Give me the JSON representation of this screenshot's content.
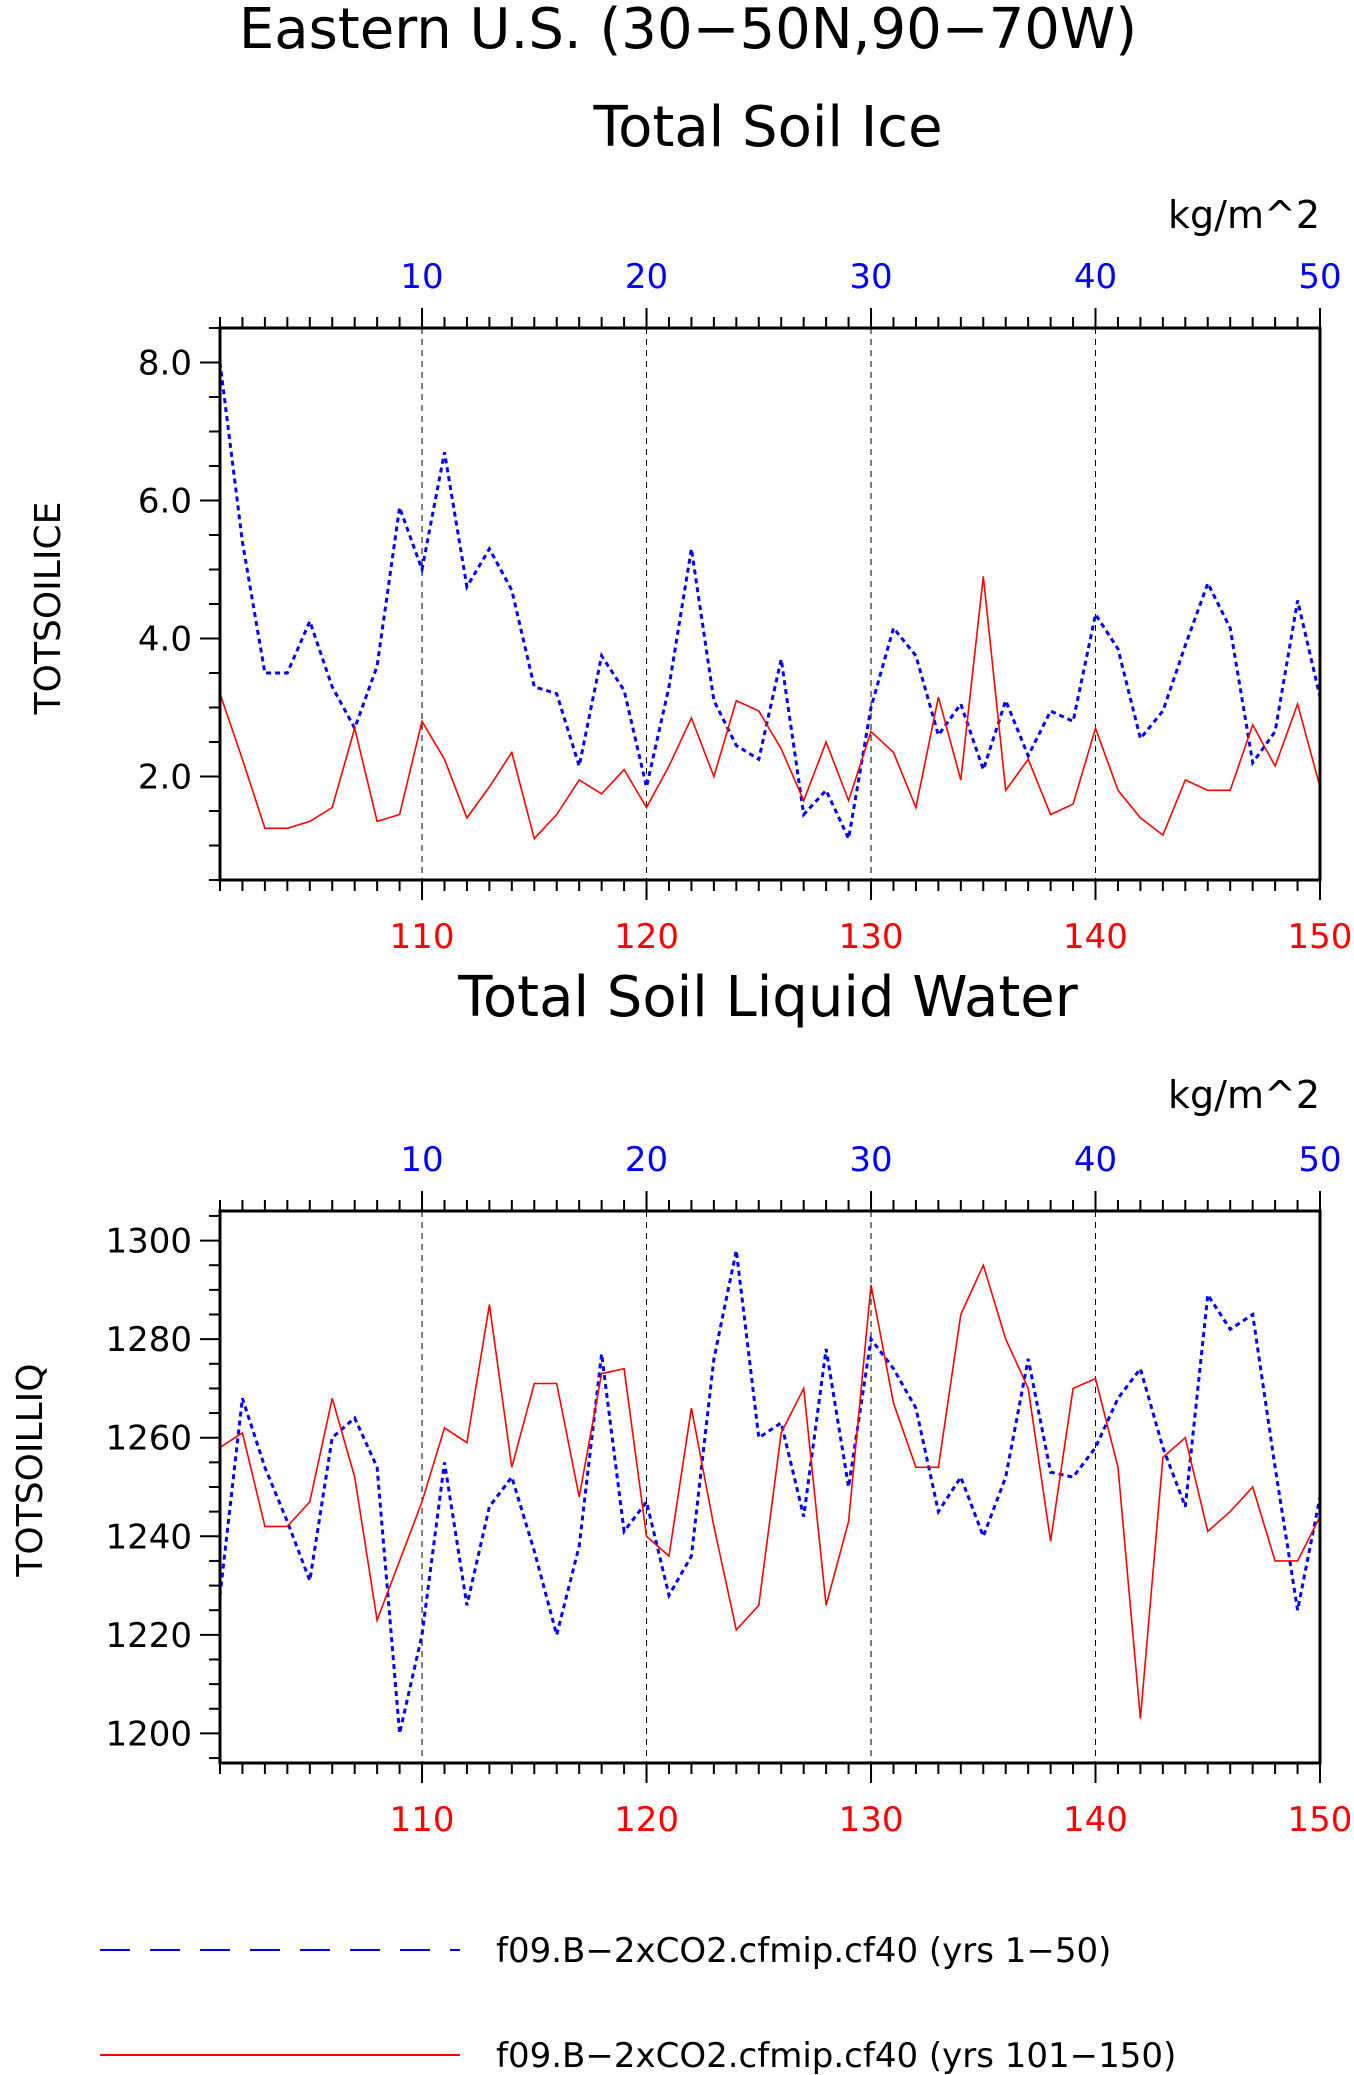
{
  "figure": {
    "title": "Eastern U.S. (30−50N,90−70W)",
    "colors": {
      "series_top": "#0000ff",
      "series_bottom": "#ff0000",
      "axis": "#000000"
    }
  },
  "chart_data": [
    {
      "type": "line",
      "title": "Total Soil Ice",
      "ylabel": "TOTSOILICE",
      "units": "kg/m^2",
      "ylim": [
        0.5,
        8.5
      ],
      "y_ticks": [
        2.0,
        4.0,
        6.0,
        8.0
      ],
      "y_tick_labels": [
        "2.0",
        "4.0",
        "6.0",
        "8.0"
      ],
      "y_minor_step": 0.5,
      "grid": "vertical dashed at major x ticks",
      "top_axis": {
        "range": [
          1,
          50
        ],
        "ticks": [
          10,
          20,
          30,
          40,
          50
        ],
        "labels": [
          "10",
          "20",
          "30",
          "40",
          "50"
        ]
      },
      "bottom_axis": {
        "range": [
          101,
          150
        ],
        "ticks": [
          110,
          120,
          130,
          140,
          150
        ],
        "labels": [
          "110",
          "120",
          "130",
          "140",
          "150"
        ]
      },
      "series": [
        {
          "name": "f09.B−2xCO2.cfmip.cf40 (yrs 1−50)",
          "axis": "top",
          "color": "#0000ff",
          "style": "dashed",
          "x": [
            1,
            2,
            3,
            4,
            5,
            6,
            7,
            8,
            9,
            10,
            11,
            12,
            13,
            14,
            15,
            16,
            17,
            18,
            19,
            20,
            21,
            22,
            23,
            24,
            25,
            26,
            27,
            28,
            29,
            30,
            31,
            32,
            33,
            34,
            35,
            36,
            37,
            38,
            39,
            40,
            41,
            42,
            43,
            44,
            45,
            46,
            47,
            48,
            49,
            50
          ],
          "values": [
            8.0,
            5.4,
            3.5,
            3.5,
            4.25,
            3.3,
            2.7,
            3.6,
            5.9,
            5.0,
            6.7,
            4.75,
            5.3,
            4.7,
            3.3,
            3.2,
            2.15,
            3.75,
            3.25,
            1.85,
            3.3,
            5.3,
            3.1,
            2.45,
            2.25,
            3.7,
            1.45,
            1.8,
            1.1,
            3.0,
            4.15,
            3.75,
            2.6,
            3.05,
            2.1,
            3.1,
            2.3,
            2.95,
            2.8,
            4.35,
            3.85,
            2.55,
            2.95,
            3.9,
            4.8,
            4.15,
            2.2,
            2.65,
            4.55,
            3.15
          ]
        },
        {
          "name": "f09.B−2xCO2.cfmip.cf40 (yrs 101−150)",
          "axis": "bottom",
          "color": "#ff0000",
          "style": "solid",
          "x": [
            101,
            102,
            103,
            104,
            105,
            106,
            107,
            108,
            109,
            110,
            111,
            112,
            113,
            114,
            115,
            116,
            117,
            118,
            119,
            120,
            121,
            122,
            123,
            124,
            125,
            126,
            127,
            128,
            129,
            130,
            131,
            132,
            133,
            134,
            135,
            136,
            137,
            138,
            139,
            140,
            141,
            142,
            143,
            144,
            145,
            146,
            147,
            148,
            149,
            150
          ],
          "values": [
            3.2,
            2.25,
            1.25,
            1.25,
            1.35,
            1.55,
            2.7,
            1.35,
            1.45,
            2.8,
            2.25,
            1.4,
            1.85,
            2.35,
            1.1,
            1.45,
            1.95,
            1.75,
            2.1,
            1.55,
            2.15,
            2.85,
            2.0,
            3.1,
            2.95,
            2.4,
            1.65,
            2.5,
            1.65,
            2.65,
            2.35,
            1.55,
            3.15,
            1.95,
            4.9,
            1.8,
            2.25,
            1.45,
            1.6,
            2.7,
            1.8,
            1.4,
            1.15,
            1.95,
            1.8,
            1.8,
            2.75,
            2.15,
            3.05,
            1.85
          ]
        }
      ]
    },
    {
      "type": "line",
      "title": "Total Soil Liquid Water",
      "ylabel": "TOTSOILLIQ",
      "units": "kg/m^2",
      "ylim": [
        1194,
        1306
      ],
      "y_ticks": [
        1200,
        1220,
        1240,
        1260,
        1280,
        1300
      ],
      "y_tick_labels": [
        "1200",
        "1220",
        "1240",
        "1260",
        "1280",
        "1300"
      ],
      "y_minor_step": 5,
      "grid": "vertical dashed at major x ticks",
      "top_axis": {
        "range": [
          1,
          50
        ],
        "ticks": [
          10,
          20,
          30,
          40,
          50
        ],
        "labels": [
          "10",
          "20",
          "30",
          "40",
          "50"
        ]
      },
      "bottom_axis": {
        "range": [
          101,
          150
        ],
        "ticks": [
          110,
          120,
          130,
          140,
          150
        ],
        "labels": [
          "110",
          "120",
          "130",
          "140",
          "150"
        ]
      },
      "series": [
        {
          "name": "f09.B−2xCO2.cfmip.cf40 (yrs 1−50)",
          "axis": "top",
          "color": "#0000ff",
          "style": "dashed",
          "x": [
            1,
            2,
            3,
            4,
            5,
            6,
            7,
            8,
            9,
            10,
            11,
            12,
            13,
            14,
            15,
            16,
            17,
            18,
            19,
            20,
            21,
            22,
            23,
            24,
            25,
            26,
            27,
            28,
            29,
            30,
            31,
            32,
            33,
            34,
            35,
            36,
            37,
            38,
            39,
            40,
            41,
            42,
            43,
            44,
            45,
            46,
            47,
            48,
            49,
            50
          ],
          "values": [
            1228,
            1268,
            1254,
            1243,
            1231,
            1260,
            1264,
            1254,
            1200,
            1220,
            1255,
            1226,
            1246,
            1252,
            1237,
            1220,
            1238,
            1277,
            1241,
            1247,
            1228,
            1236,
            1276,
            1298,
            1260,
            1263,
            1244,
            1278,
            1250,
            1280,
            1274,
            1266,
            1245,
            1252,
            1240,
            1252,
            1276,
            1253,
            1252,
            1258,
            1268,
            1274,
            1258,
            1246,
            1289,
            1282,
            1285,
            1254,
            1225,
            1248
          ]
        },
        {
          "name": "f09.B−2xCO2.cfmip.cf40 (yrs 101−150)",
          "axis": "bottom",
          "color": "#ff0000",
          "style": "solid",
          "x": [
            101,
            102,
            103,
            104,
            105,
            106,
            107,
            108,
            109,
            110,
            111,
            112,
            113,
            114,
            115,
            116,
            117,
            118,
            119,
            120,
            121,
            122,
            123,
            124,
            125,
            126,
            127,
            128,
            129,
            130,
            131,
            132,
            133,
            134,
            135,
            136,
            137,
            138,
            139,
            140,
            141,
            142,
            143,
            144,
            145,
            146,
            147,
            148,
            149,
            150
          ],
          "values": [
            1258,
            1261,
            1242,
            1242,
            1247,
            1268,
            1252,
            1223,
            1235,
            1247,
            1262,
            1259,
            1287,
            1254,
            1271,
            1271,
            1248,
            1273,
            1274,
            1240,
            1236,
            1266,
            1242,
            1221,
            1226,
            1261,
            1270,
            1226,
            1243,
            1291,
            1267,
            1254,
            1254,
            1285,
            1295,
            1280,
            1270,
            1239,
            1270,
            1272,
            1254,
            1203,
            1256,
            1260,
            1241,
            1245,
            1250,
            1235,
            1235,
            1244
          ]
        }
      ]
    }
  ],
  "legend": {
    "placement": "bottom",
    "entries": [
      {
        "label": "f09.B−2xCO2.cfmip.cf40 (yrs 1−50)",
        "color": "#0000ff",
        "style": "dashed"
      },
      {
        "label": "f09.B−2xCO2.cfmip.cf40 (yrs 101−150)",
        "color": "#ff0000",
        "style": "solid"
      }
    ]
  }
}
